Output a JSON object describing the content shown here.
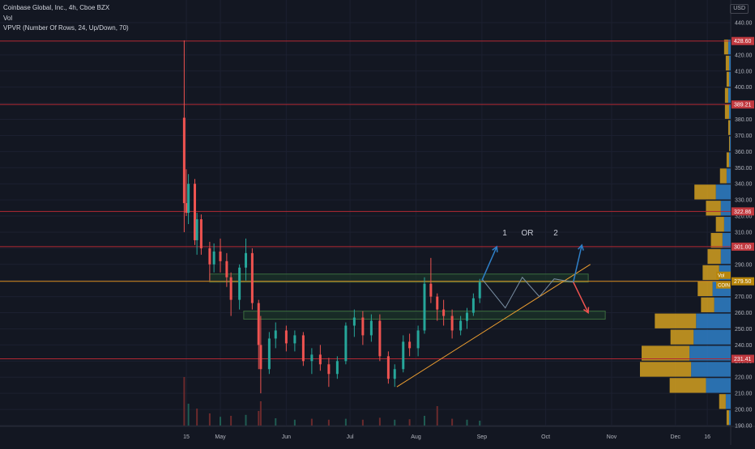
{
  "chart_header": {
    "title": "Coinbase Global, Inc., 4h, Cboe BZX",
    "volume_label": "Vol",
    "indicator_label": "VPVR (Number Of Rows, 24, Up/Down, 70)",
    "currency": "USD"
  },
  "colors": {
    "background": "#131722",
    "grid": "#1c2030",
    "axis_text": "#b2b5be",
    "up_candle": "#26a69a",
    "down_candle": "#ef5350",
    "level_line": "#b22833",
    "orange_line": "#f0a030",
    "zone_fill": "#1e3d2a",
    "zone_border": "#3b6b3e",
    "projection": "#2f80c8",
    "vp_up": "#2f80c8",
    "vp_down": "#d4a020"
  },
  "chart_data": {
    "type": "candlestick",
    "title": "Coinbase Global, Inc., 4h, Cboe BZX",
    "y_axis": {
      "min": 190,
      "max": 440,
      "ticks": [
        440,
        420,
        410,
        400,
        390,
        380,
        370,
        360,
        350,
        340,
        330,
        320,
        310,
        300,
        290,
        280,
        270,
        260,
        250,
        240,
        230,
        220,
        210,
        200,
        190
      ]
    },
    "x_axis": {
      "ticks": [
        {
          "label": "15",
          "date": "2021-04-15"
        },
        {
          "label": "May",
          "date": "2021-05-01"
        },
        {
          "label": "Jun",
          "date": "2021-06-01"
        },
        {
          "label": "Jul",
          "date": "2021-07-01"
        },
        {
          "label": "Aug",
          "date": "2021-08-01"
        },
        {
          "label": "Sep",
          "date": "2021-09-01"
        },
        {
          "label": "Oct",
          "date": "2021-10-01"
        },
        {
          "label": "Nov",
          "date": "2021-11-01"
        },
        {
          "label": "Dec",
          "date": "2021-12-01"
        },
        {
          "label": "16",
          "date": "2021-12-16"
        }
      ]
    },
    "price_labels": [
      {
        "value": 428.6,
        "text": "428.60",
        "color": "#c0393f"
      },
      {
        "value": 389.21,
        "text": "389.21",
        "color": "#c0393f"
      },
      {
        "value": 322.86,
        "text": "322.86",
        "color": "#c0393f"
      },
      {
        "value": 301.0,
        "text": "301.00",
        "color": "#c0393f"
      },
      {
        "value": 279.5,
        "text": "279.50",
        "color": "#b8860b"
      },
      {
        "value": 231.41,
        "text": "231.41",
        "color": "#c0393f"
      }
    ],
    "price_tags": [
      {
        "value": 283,
        "text": "Vol"
      },
      {
        "value": 277,
        "text": "COIN"
      }
    ],
    "horizontal_levels": [
      {
        "value": 428.6,
        "color": "#b22833"
      },
      {
        "value": 389.21,
        "color": "#b22833"
      },
      {
        "value": 322.86,
        "color": "#b22833"
      },
      {
        "value": 301.0,
        "color": "#b22833"
      },
      {
        "value": 231.41,
        "color": "#b22833"
      },
      {
        "value": 279.5,
        "color": "#d98c1f"
      }
    ],
    "zones": [
      {
        "date_from": "2021-04-26",
        "date_to": "2021-10-21",
        "price_from": 279,
        "price_to": 284
      },
      {
        "date_from": "2021-05-12",
        "date_to": "2021-10-29",
        "price_from": 256,
        "price_to": 261
      }
    ],
    "trendline": {
      "from": {
        "date": "2021-07-23",
        "price": 214
      },
      "to": {
        "date": "2021-10-22",
        "price": 290
      }
    },
    "annotations": [
      "1",
      "OR",
      "2"
    ],
    "path_points": [
      {
        "date": "2021-09-01",
        "price": 280
      },
      {
        "date": "2021-09-07",
        "price": 298
      }
    ],
    "arrow_up_1": {
      "from": {
        "date": "2021-09-01",
        "price": 280
      },
      "to": {
        "date": "2021-09-08",
        "price": 301
      }
    },
    "zigzag": [
      {
        "date": "2021-09-01",
        "price": 281
      },
      {
        "date": "2021-09-12",
        "price": 263
      },
      {
        "date": "2021-09-20",
        "price": 282
      },
      {
        "date": "2021-09-28",
        "price": 270
      },
      {
        "date": "2021-10-05",
        "price": 281
      },
      {
        "date": "2021-10-14",
        "price": 279
      }
    ],
    "arrow_up_2": {
      "from": {
        "date": "2021-10-14",
        "price": 279
      },
      "to": {
        "date": "2021-10-18",
        "price": 302
      }
    },
    "arrow_down": {
      "from": {
        "date": "2021-10-14",
        "price": 279
      },
      "to": {
        "date": "2021-10-21",
        "price": 260
      }
    },
    "candles": [
      {
        "date": "2021-04-14",
        "open": 381,
        "high": 429,
        "low": 310,
        "close": 328
      },
      {
        "date": "2021-04-15",
        "open": 328,
        "high": 349,
        "low": 320,
        "close": 322
      },
      {
        "date": "2021-04-16",
        "open": 322,
        "high": 346,
        "low": 315,
        "close": 340
      },
      {
        "date": "2021-04-19",
        "open": 340,
        "high": 343,
        "low": 302,
        "close": 305
      },
      {
        "date": "2021-04-20",
        "open": 305,
        "high": 322,
        "low": 296,
        "close": 318
      },
      {
        "date": "2021-04-22",
        "open": 318,
        "high": 321,
        "low": 296,
        "close": 300
      },
      {
        "date": "2021-04-26",
        "open": 300,
        "high": 304,
        "low": 280,
        "close": 290
      },
      {
        "date": "2021-04-28",
        "open": 290,
        "high": 303,
        "low": 285,
        "close": 298
      },
      {
        "date": "2021-05-01",
        "open": 298,
        "high": 306,
        "low": 285,
        "close": 292
      },
      {
        "date": "2021-05-04",
        "open": 292,
        "high": 297,
        "low": 276,
        "close": 282
      },
      {
        "date": "2021-05-06",
        "open": 282,
        "high": 285,
        "low": 258,
        "close": 268
      },
      {
        "date": "2021-05-10",
        "open": 268,
        "high": 290,
        "low": 262,
        "close": 288
      },
      {
        "date": "2021-05-13",
        "open": 288,
        "high": 306,
        "low": 280,
        "close": 297
      },
      {
        "date": "2021-05-16",
        "open": 297,
        "high": 300,
        "low": 262,
        "close": 266
      },
      {
        "date": "2021-05-19",
        "open": 266,
        "high": 268,
        "low": 225,
        "close": 240
      },
      {
        "date": "2021-05-20",
        "open": 240,
        "high": 258,
        "low": 210,
        "close": 225
      },
      {
        "date": "2021-05-24",
        "open": 225,
        "high": 248,
        "low": 222,
        "close": 244
      },
      {
        "date": "2021-05-27",
        "open": 244,
        "high": 254,
        "low": 238,
        "close": 249
      },
      {
        "date": "2021-06-01",
        "open": 249,
        "high": 252,
        "low": 236,
        "close": 241
      },
      {
        "date": "2021-06-05",
        "open": 241,
        "high": 249,
        "low": 236,
        "close": 246
      },
      {
        "date": "2021-06-09",
        "open": 246,
        "high": 248,
        "low": 227,
        "close": 230
      },
      {
        "date": "2021-06-13",
        "open": 230,
        "high": 238,
        "low": 222,
        "close": 234
      },
      {
        "date": "2021-06-17",
        "open": 234,
        "high": 240,
        "low": 224,
        "close": 228
      },
      {
        "date": "2021-06-21",
        "open": 228,
        "high": 232,
        "low": 214,
        "close": 222
      },
      {
        "date": "2021-06-25",
        "open": 222,
        "high": 233,
        "low": 219,
        "close": 230
      },
      {
        "date": "2021-06-29",
        "open": 230,
        "high": 254,
        "low": 228,
        "close": 252
      },
      {
        "date": "2021-07-03",
        "open": 252,
        "high": 262,
        "low": 245,
        "close": 257
      },
      {
        "date": "2021-07-07",
        "open": 257,
        "high": 261,
        "low": 240,
        "close": 246
      },
      {
        "date": "2021-07-11",
        "open": 246,
        "high": 259,
        "low": 242,
        "close": 255
      },
      {
        "date": "2021-07-15",
        "open": 255,
        "high": 259,
        "low": 230,
        "close": 233
      },
      {
        "date": "2021-07-19",
        "open": 233,
        "high": 236,
        "low": 216,
        "close": 219
      },
      {
        "date": "2021-07-22",
        "open": 219,
        "high": 228,
        "low": 214,
        "close": 225
      },
      {
        "date": "2021-07-26",
        "open": 225,
        "high": 246,
        "low": 223,
        "close": 242
      },
      {
        "date": "2021-07-29",
        "open": 242,
        "high": 247,
        "low": 233,
        "close": 238
      },
      {
        "date": "2021-08-02",
        "open": 238,
        "high": 252,
        "low": 233,
        "close": 249
      },
      {
        "date": "2021-08-05",
        "open": 249,
        "high": 282,
        "low": 247,
        "close": 278
      },
      {
        "date": "2021-08-08",
        "open": 278,
        "high": 294,
        "low": 266,
        "close": 270
      },
      {
        "date": "2021-08-11",
        "open": 270,
        "high": 272,
        "low": 255,
        "close": 262
      },
      {
        "date": "2021-08-14",
        "open": 262,
        "high": 268,
        "low": 252,
        "close": 258
      },
      {
        "date": "2021-08-18",
        "open": 258,
        "high": 262,
        "low": 244,
        "close": 249
      },
      {
        "date": "2021-08-22",
        "open": 249,
        "high": 258,
        "low": 246,
        "close": 255
      },
      {
        "date": "2021-08-25",
        "open": 255,
        "high": 263,
        "low": 250,
        "close": 260
      },
      {
        "date": "2021-08-28",
        "open": 260,
        "high": 272,
        "low": 258,
        "close": 269
      },
      {
        "date": "2021-08-31",
        "open": 269,
        "high": 281,
        "low": 266,
        "close": 279
      }
    ],
    "volume": [
      {
        "date": "2021-04-14",
        "value": 100,
        "dir": "down"
      },
      {
        "date": "2021-04-16",
        "value": 45,
        "dir": "up"
      },
      {
        "date": "2021-04-20",
        "value": 35,
        "dir": "down"
      },
      {
        "date": "2021-04-26",
        "value": 25,
        "dir": "down"
      },
      {
        "date": "2021-05-01",
        "value": 18,
        "dir": "up"
      },
      {
        "date": "2021-05-06",
        "value": 20,
        "dir": "down"
      },
      {
        "date": "2021-05-13",
        "value": 22,
        "dir": "up"
      },
      {
        "date": "2021-05-19",
        "value": 30,
        "dir": "down"
      },
      {
        "date": "2021-05-20",
        "value": 50,
        "dir": "down"
      },
      {
        "date": "2021-05-27",
        "value": 15,
        "dir": "up"
      },
      {
        "date": "2021-06-05",
        "value": 12,
        "dir": "up"
      },
      {
        "date": "2021-06-13",
        "value": 14,
        "dir": "down"
      },
      {
        "date": "2021-06-21",
        "value": 12,
        "dir": "down"
      },
      {
        "date": "2021-06-29",
        "value": 14,
        "dir": "up"
      },
      {
        "date": "2021-07-07",
        "value": 12,
        "dir": "down"
      },
      {
        "date": "2021-07-15",
        "value": 16,
        "dir": "down"
      },
      {
        "date": "2021-07-22",
        "value": 12,
        "dir": "up"
      },
      {
        "date": "2021-07-29",
        "value": 13,
        "dir": "down"
      },
      {
        "date": "2021-08-05",
        "value": 20,
        "dir": "up"
      },
      {
        "date": "2021-08-11",
        "value": 40,
        "dir": "down"
      },
      {
        "date": "2021-08-18",
        "value": 14,
        "dir": "down"
      },
      {
        "date": "2021-08-25",
        "value": 12,
        "dir": "up"
      },
      {
        "date": "2021-08-31",
        "value": 10,
        "dir": "up"
      }
    ],
    "volume_profile": [
      {
        "price": 425,
        "up": 3,
        "down": 5
      },
      {
        "price": 415,
        "up": 2,
        "down": 4
      },
      {
        "price": 405,
        "up": 2,
        "down": 3
      },
      {
        "price": 395,
        "up": 3,
        "down": 4
      },
      {
        "price": 385,
        "up": 2,
        "down": 5
      },
      {
        "price": 375,
        "up": 1,
        "down": 2
      },
      {
        "price": 365,
        "up": 1,
        "down": 1
      },
      {
        "price": 355,
        "up": 2,
        "down": 3
      },
      {
        "price": 345,
        "up": 5,
        "down": 8
      },
      {
        "price": 335,
        "up": 18,
        "down": 26
      },
      {
        "price": 325,
        "up": 12,
        "down": 18
      },
      {
        "price": 315,
        "up": 8,
        "down": 10
      },
      {
        "price": 305,
        "up": 10,
        "down": 14
      },
      {
        "price": 295,
        "up": 12,
        "down": 16
      },
      {
        "price": 285,
        "up": 14,
        "down": 20
      },
      {
        "price": 275,
        "up": 22,
        "down": 18
      },
      {
        "price": 265,
        "up": 20,
        "down": 16
      },
      {
        "price": 255,
        "up": 42,
        "down": 50
      },
      {
        "price": 245,
        "up": 45,
        "down": 28
      },
      {
        "price": 235,
        "up": 50,
        "down": 58
      },
      {
        "price": 225,
        "up": 48,
        "down": 62
      },
      {
        "price": 215,
        "up": 30,
        "down": 44
      },
      {
        "price": 205,
        "up": 6,
        "down": 8
      },
      {
        "price": 195,
        "up": 2,
        "down": 3
      }
    ]
  }
}
